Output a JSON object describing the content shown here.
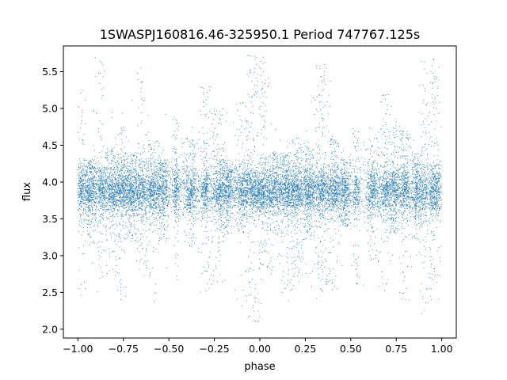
{
  "chart_data": {
    "type": "scatter",
    "title": "1SWASPJ160816.46-325950.1 Period 747767.125s",
    "xlabel": "phase",
    "ylabel": "flux",
    "xlim": [
      -1.08,
      1.08
    ],
    "ylim": [
      1.88,
      5.85
    ],
    "xticks": [
      -1.0,
      -0.75,
      -0.5,
      -0.25,
      0.0,
      0.25,
      0.5,
      0.75,
      1.0
    ],
    "xtick_labels": [
      "−1.00",
      "−0.75",
      "−0.50",
      "−0.25",
      "0.00",
      "0.25",
      "0.50",
      "0.75",
      "1.00"
    ],
    "yticks": [
      2.0,
      2.5,
      3.0,
      3.5,
      4.0,
      4.5,
      5.0,
      5.5
    ],
    "ytick_labels": [
      "2.0",
      "2.5",
      "3.0",
      "3.5",
      "4.0",
      "4.5",
      "5.0",
      "5.5"
    ],
    "grid": false,
    "point_color": "#1f77b4",
    "approx_point_count": 14000,
    "phase_range": [
      -1.0,
      1.0
    ],
    "baseline_flux": 3.87,
    "typical_flux_range": [
      3.4,
      4.3
    ],
    "full_flux_range": [
      2.05,
      5.78
    ],
    "clusters": [
      {
        "phase": -0.98,
        "width": 0.012,
        "n": 260,
        "y_max": 5.25,
        "y_min": 2.35
      },
      {
        "phase": -0.93,
        "width": 0.022,
        "n": 500,
        "y_max": 4.3,
        "y_min": 3.1
      },
      {
        "phase": -0.87,
        "width": 0.012,
        "n": 280,
        "y_max": 5.7,
        "y_min": 2.45
      },
      {
        "phase": -0.81,
        "width": 0.025,
        "n": 560,
        "y_max": 4.5,
        "y_min": 2.7
      },
      {
        "phase": -0.76,
        "width": 0.012,
        "n": 220,
        "y_max": 4.8,
        "y_min": 2.35
      },
      {
        "phase": -0.71,
        "width": 0.025,
        "n": 560,
        "y_max": 4.4,
        "y_min": 3.2
      },
      {
        "phase": -0.65,
        "width": 0.02,
        "n": 420,
        "y_max": 5.6,
        "y_min": 2.8
      },
      {
        "phase": -0.59,
        "width": 0.02,
        "n": 420,
        "y_max": 4.6,
        "y_min": 2.25
      },
      {
        "phase": -0.53,
        "width": 0.022,
        "n": 440,
        "y_max": 4.3,
        "y_min": 3.2
      },
      {
        "phase": -0.46,
        "width": 0.012,
        "n": 260,
        "y_max": 4.9,
        "y_min": 2.6
      },
      {
        "phase": -0.38,
        "width": 0.022,
        "n": 440,
        "y_max": 4.6,
        "y_min": 3.1
      },
      {
        "phase": -0.3,
        "width": 0.018,
        "n": 360,
        "y_max": 5.3,
        "y_min": 2.5
      },
      {
        "phase": -0.23,
        "width": 0.02,
        "n": 400,
        "y_max": 5.0,
        "y_min": 2.6
      },
      {
        "phase": -0.18,
        "width": 0.025,
        "n": 440,
        "y_max": 4.3,
        "y_min": 3.3
      },
      {
        "phase": -0.1,
        "width": 0.022,
        "n": 380,
        "y_max": 5.1,
        "y_min": 3.3
      },
      {
        "phase": -0.04,
        "width": 0.03,
        "n": 640,
        "y_max": 5.75,
        "y_min": 2.1
      },
      {
        "phase": 0.02,
        "width": 0.02,
        "n": 420,
        "y_max": 5.7,
        "y_min": 2.8
      },
      {
        "phase": 0.08,
        "width": 0.022,
        "n": 440,
        "y_max": 4.4,
        "y_min": 2.8
      },
      {
        "phase": 0.14,
        "width": 0.022,
        "n": 440,
        "y_max": 4.4,
        "y_min": 2.35
      },
      {
        "phase": 0.2,
        "width": 0.025,
        "n": 560,
        "y_max": 4.6,
        "y_min": 2.6
      },
      {
        "phase": 0.27,
        "width": 0.022,
        "n": 480,
        "y_max": 4.5,
        "y_min": 3.2
      },
      {
        "phase": 0.34,
        "width": 0.025,
        "n": 560,
        "y_max": 5.6,
        "y_min": 2.5
      },
      {
        "phase": 0.41,
        "width": 0.022,
        "n": 460,
        "y_max": 4.6,
        "y_min": 2.5
      },
      {
        "phase": 0.47,
        "width": 0.018,
        "n": 360,
        "y_max": 4.3,
        "y_min": 3.4
      },
      {
        "phase": 0.53,
        "width": 0.012,
        "n": 220,
        "y_max": 4.7,
        "y_min": 2.6
      },
      {
        "phase": 0.62,
        "width": 0.02,
        "n": 420,
        "y_max": 4.6,
        "y_min": 2.9
      },
      {
        "phase": 0.69,
        "width": 0.018,
        "n": 380,
        "y_max": 5.2,
        "y_min": 2.6
      },
      {
        "phase": 0.74,
        "width": 0.018,
        "n": 380,
        "y_max": 4.9,
        "y_min": 3.3
      },
      {
        "phase": 0.8,
        "width": 0.02,
        "n": 420,
        "y_max": 4.7,
        "y_min": 2.3
      },
      {
        "phase": 0.86,
        "width": 0.012,
        "n": 260,
        "y_max": 4.4,
        "y_min": 3.2
      },
      {
        "phase": 0.9,
        "width": 0.015,
        "n": 300,
        "y_max": 5.7,
        "y_min": 2.2
      },
      {
        "phase": 0.96,
        "width": 0.022,
        "n": 520,
        "y_max": 5.7,
        "y_min": 2.4
      }
    ]
  }
}
